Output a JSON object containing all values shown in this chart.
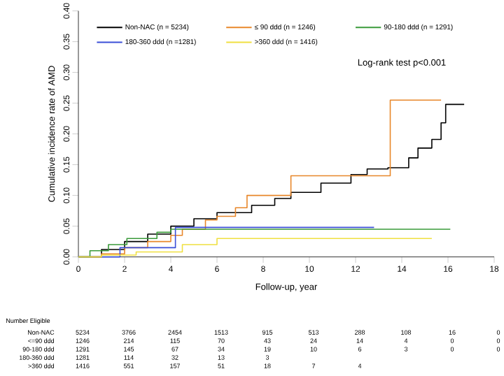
{
  "chart_data": {
    "type": "step",
    "xlabel": "Follow-up, year",
    "ylabel": "Cumulative incidence rate of AMD",
    "xlim": [
      0,
      18
    ],
    "xticks": [
      0,
      2,
      4,
      6,
      8,
      10,
      12,
      14,
      16,
      18
    ],
    "ylim": [
      0,
      0.4
    ],
    "yticks": [
      {
        "value": 0,
        "label": "0.00"
      },
      {
        "value": 0.05,
        "label": "0.05"
      },
      {
        "value": 0.1,
        "label": "0.10"
      },
      {
        "value": 0.15,
        "label": "0.15"
      },
      {
        "value": 0.2,
        "label": "0.20"
      },
      {
        "value": 0.25,
        "label": "0.25"
      },
      {
        "value": 0.3,
        "label": "0.30"
      },
      {
        "value": 0.35,
        "label": "0.35"
      },
      {
        "value": 0.4,
        "label": "0.40"
      }
    ],
    "legend": "top",
    "series": [
      {
        "name": "Non-NAC (n = 5234)",
        "color": "#000000",
        "x": [
          0,
          1,
          2,
          3,
          4,
          5,
          6,
          7.5,
          8.5,
          9.2,
          10.5,
          11.8,
          12.5,
          13.4,
          14.3,
          14.7,
          15.3,
          15.7,
          15.9,
          16.7
        ],
        "values": [
          0,
          0.012,
          0.025,
          0.037,
          0.05,
          0.062,
          0.072,
          0.084,
          0.095,
          0.105,
          0.12,
          0.134,
          0.143,
          0.145,
          0.161,
          0.177,
          0.191,
          0.218,
          0.248,
          0.248
        ]
      },
      {
        "name": "≤ 90 ddd (n = 1246)",
        "color": "#e8872a",
        "x": [
          0,
          1,
          2,
          3,
          4,
          4.5,
          5.5,
          6,
          6.8,
          7.3,
          9.2,
          13.5,
          15.7
        ],
        "values": [
          0,
          0.005,
          0.015,
          0.025,
          0.035,
          0.045,
          0.06,
          0.066,
          0.08,
          0.1,
          0.132,
          0.255,
          0.255
        ]
      },
      {
        "name": "90-180 ddd (n = 1291)",
        "color": "#3a9a3a",
        "x": [
          0,
          0.5,
          1.3,
          2.1,
          3.4,
          4,
          16.1
        ],
        "values": [
          0,
          0.01,
          0.02,
          0.03,
          0.04,
          0.045,
          0.045
        ]
      },
      {
        "name": "180-360 ddd (n =1281)",
        "color": "#3b4fd8",
        "x": [
          0,
          1.8,
          4.2,
          12.8
        ],
        "values": [
          0,
          0.015,
          0.048,
          0.048
        ]
      },
      {
        "name": ">360 ddd (n = 1416)",
        "color": "#f0e040",
        "x": [
          0,
          1,
          2.5,
          4.5,
          6,
          15.3
        ],
        "values": [
          0,
          0.003,
          0.008,
          0.02,
          0.03,
          0.03
        ]
      }
    ],
    "annotations": [
      "Log-rank test p<0.001",
      "Number Eligible",
      "Non-NAC",
      "5234",
      "3766",
      "2454",
      "1513",
      "915",
      "513",
      "288",
      "108",
      "16",
      "0",
      "<=90 ddd",
      "1246",
      "214",
      "115",
      "70",
      "43",
      "24",
      "14",
      "4",
      "0",
      "0",
      "90-180 ddd",
      "1291",
      "145",
      "67",
      "34",
      "19",
      "10",
      "6",
      "3",
      "0",
      "0",
      "180-360 ddd",
      "1281",
      "114",
      "32",
      "13",
      "3",
      ">360 ddd",
      "1416",
      "551",
      "157",
      "51",
      "18",
      "7",
      "4"
    ]
  }
}
